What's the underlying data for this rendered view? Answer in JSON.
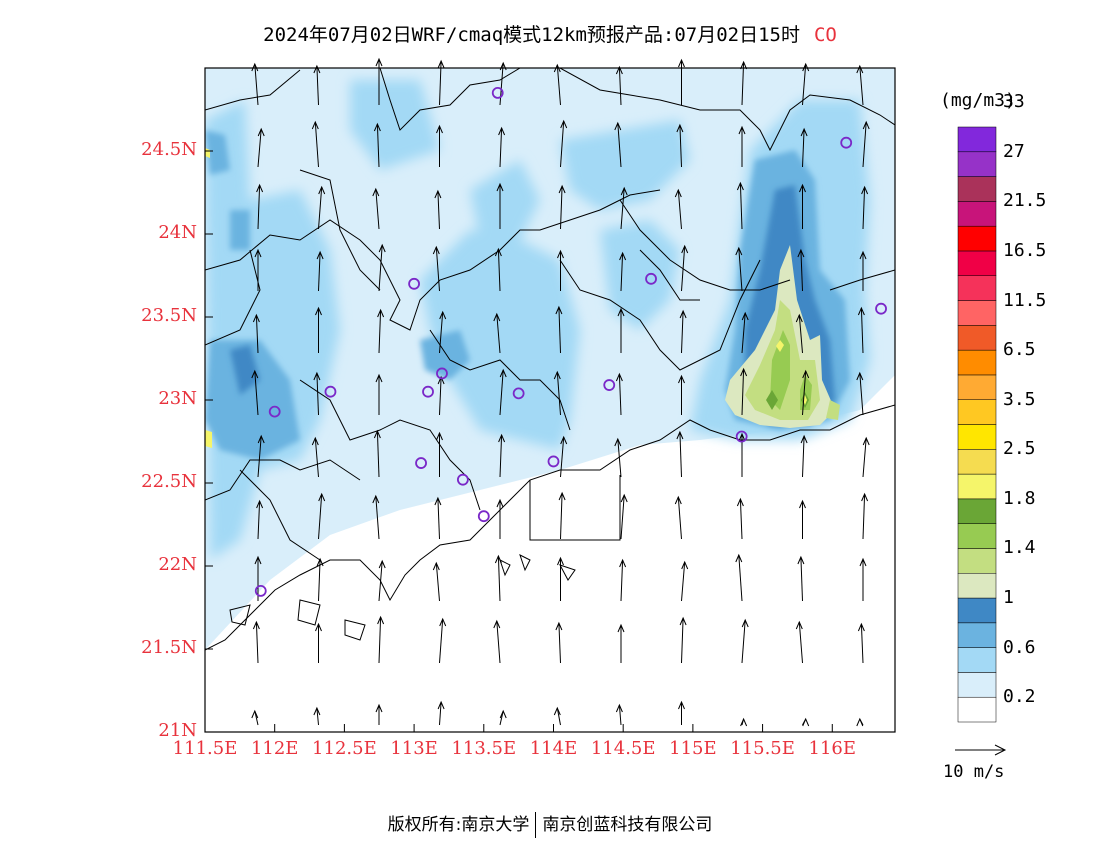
{
  "header": {
    "title": "2024年07月02日WRF/cmaq模式12km预报产品:07月02日15时",
    "species": "CO"
  },
  "axes": {
    "lat_ticks": [
      "24.5N",
      "24N",
      "23.5N",
      "23N",
      "22.5N",
      "22N",
      "21.5N",
      "21N"
    ],
    "lat_values": [
      24.5,
      24,
      23.5,
      23,
      22.5,
      22,
      21.5,
      21
    ],
    "lon_ticks": [
      "111.5E",
      "112E",
      "112.5E",
      "113E",
      "113.5E",
      "114E",
      "114.5E",
      "115E",
      "115.5E",
      "116E"
    ],
    "lon_values": [
      111.5,
      112,
      112.5,
      113,
      113.5,
      114,
      114.5,
      115,
      115.5,
      116
    ],
    "lon_range": [
      111.5,
      116.45
    ],
    "lat_range": [
      21,
      25.0
    ]
  },
  "colorbar": {
    "unit": "(mg/m3)",
    "colors": [
      "#ffffff",
      "#d9eefa",
      "#a3d9f5",
      "#6bb3e0",
      "#3f88c5",
      "#dce8c0",
      "#c3de81",
      "#97cb52",
      "#6aa636",
      "#f5f56a",
      "#f5dc50",
      "#ffe600",
      "#ffc822",
      "#ffaa33",
      "#ff8c00",
      "#f05a28",
      "#ff6464",
      "#f5325a",
      "#f00046",
      "#ff0000",
      "#c8147a",
      "#aa325a",
      "#9632c8",
      "#8228dc"
    ],
    "labels": [
      "0.2",
      "0.6",
      "1",
      "1.4",
      "1.8",
      "2.5",
      "3.5",
      "6.5",
      "11.5",
      "16.5",
      "21.5",
      "27",
      "33"
    ]
  },
  "reference_vector": {
    "label": "10 m/s"
  },
  "stations": [
    [
      113.6,
      24.85
    ],
    [
      116.1,
      24.55
    ],
    [
      113.0,
      23.7
    ],
    [
      114.7,
      23.73
    ],
    [
      116.35,
      23.55
    ],
    [
      112.4,
      23.05
    ],
    [
      112.0,
      22.93
    ],
    [
      113.1,
      23.05
    ],
    [
      113.2,
      23.16
    ],
    [
      113.75,
      23.04
    ],
    [
      114.4,
      23.09
    ],
    [
      113.05,
      22.62
    ],
    [
      113.35,
      22.52
    ],
    [
      114.0,
      22.63
    ],
    [
      113.5,
      22.3
    ],
    [
      111.9,
      21.85
    ],
    [
      115.35,
      22.78
    ]
  ],
  "footer": {
    "left": "版权所有:南京大学",
    "right": "南京创蓝科技有限公司"
  }
}
